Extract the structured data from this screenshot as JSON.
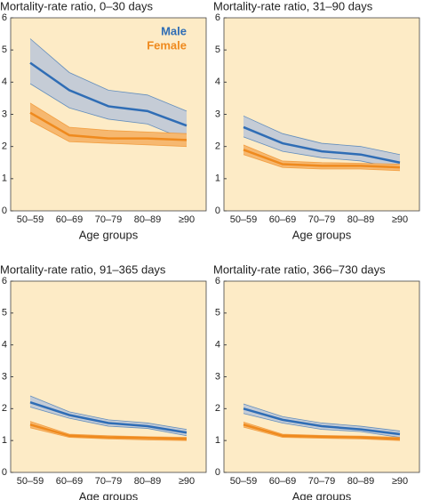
{
  "chart_data": [
    {
      "type": "line",
      "title": "Mortality-rate ratio, 0–30 days",
      "xlabel": "Age groups",
      "categories": [
        "50–59",
        "60–69",
        "70–79",
        "80–89",
        "≥90"
      ],
      "ylim": [
        0,
        6
      ],
      "yticks": [
        0,
        1,
        2,
        3,
        4,
        5,
        6
      ],
      "legend": "top-right",
      "series": [
        {
          "name": "Male",
          "color": "#2f6db5",
          "band_color": "#c5ccd6",
          "values": [
            4.6,
            3.75,
            3.25,
            3.1,
            2.65
          ],
          "upper": [
            5.35,
            4.3,
            3.75,
            3.6,
            3.1
          ],
          "lower": [
            3.95,
            3.2,
            2.85,
            2.7,
            2.2
          ]
        },
        {
          "name": "Female",
          "color": "#ef8a1e",
          "band_color": "#f6b870",
          "values": [
            3.05,
            2.35,
            2.25,
            2.25,
            2.2
          ],
          "upper": [
            3.35,
            2.6,
            2.5,
            2.45,
            2.4
          ],
          "lower": [
            2.8,
            2.15,
            2.1,
            2.05,
            2.0
          ]
        }
      ]
    },
    {
      "type": "line",
      "title": "Mortality-rate ratio, 31–90 days",
      "xlabel": "Age groups",
      "categories": [
        "50–59",
        "60–69",
        "70–79",
        "80–89",
        "≥90"
      ],
      "ylim": [
        0,
        6
      ],
      "yticks": [
        0,
        1,
        2,
        3,
        4,
        5,
        6
      ],
      "series": [
        {
          "color": "#2f6db5",
          "band_color": "#c5ccd6",
          "values": [
            2.6,
            2.1,
            1.85,
            1.75,
            1.5
          ],
          "upper": [
            2.95,
            2.4,
            2.1,
            2.0,
            1.75
          ],
          "lower": [
            2.3,
            1.85,
            1.65,
            1.55,
            1.3
          ]
        },
        {
          "color": "#ef8a1e",
          "band_color": "#f6b870",
          "values": [
            1.9,
            1.45,
            1.4,
            1.4,
            1.35
          ],
          "upper": [
            2.05,
            1.55,
            1.5,
            1.48,
            1.45
          ],
          "lower": [
            1.75,
            1.35,
            1.3,
            1.3,
            1.25
          ]
        }
      ]
    },
    {
      "type": "line",
      "title": "Mortality-rate ratio, 91–365 days",
      "xlabel": "Age groups",
      "categories": [
        "50–59",
        "60–69",
        "70–79",
        "80–89",
        "≥90"
      ],
      "ylim": [
        0,
        6
      ],
      "yticks": [
        0,
        1,
        2,
        3,
        4,
        5,
        6
      ],
      "series": [
        {
          "color": "#2f6db5",
          "band_color": "#c5ccd6",
          "values": [
            2.2,
            1.8,
            1.55,
            1.45,
            1.25
          ],
          "upper": [
            2.4,
            1.9,
            1.65,
            1.55,
            1.35
          ],
          "lower": [
            2.05,
            1.7,
            1.45,
            1.38,
            1.15
          ]
        },
        {
          "color": "#ef8a1e",
          "band_color": "#f6b870",
          "values": [
            1.5,
            1.15,
            1.1,
            1.08,
            1.05
          ],
          "upper": [
            1.6,
            1.2,
            1.15,
            1.12,
            1.1
          ],
          "lower": [
            1.4,
            1.1,
            1.05,
            1.02,
            1.0
          ]
        }
      ]
    },
    {
      "type": "line",
      "title": "Mortality-rate ratio, 366–730 days",
      "xlabel": "Age groups",
      "categories": [
        "50–59",
        "60–69",
        "70–79",
        "80–89",
        "≥90"
      ],
      "ylim": [
        0,
        6
      ],
      "yticks": [
        0,
        1,
        2,
        3,
        4,
        5,
        6
      ],
      "series": [
        {
          "color": "#2f6db5",
          "band_color": "#c5ccd6",
          "values": [
            2.0,
            1.65,
            1.45,
            1.35,
            1.2
          ],
          "upper": [
            2.15,
            1.75,
            1.55,
            1.45,
            1.3
          ],
          "lower": [
            1.85,
            1.55,
            1.35,
            1.28,
            1.1
          ]
        },
        {
          "color": "#ef8a1e",
          "band_color": "#f6b870",
          "values": [
            1.5,
            1.15,
            1.12,
            1.1,
            1.05
          ],
          "upper": [
            1.58,
            1.2,
            1.16,
            1.14,
            1.1
          ],
          "lower": [
            1.42,
            1.1,
            1.07,
            1.05,
            1.0
          ]
        }
      ]
    }
  ]
}
